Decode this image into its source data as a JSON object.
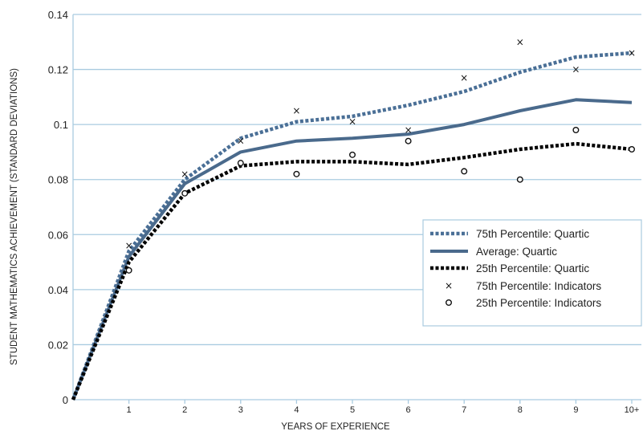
{
  "chart_data": {
    "type": "line",
    "title": "",
    "xlabel": "YEARS OF EXPERIENCE",
    "ylabel": "STUDENT MATHEMATICS ACHIEVEMENT (STANDARD DEVIATIONS)",
    "x_categories": [
      "1",
      "2",
      "3",
      "4",
      "5",
      "6",
      "7",
      "8",
      "9",
      "10+"
    ],
    "ylim": [
      0,
      0.14
    ],
    "y_ticks": [
      "0",
      "0.02",
      "0.04",
      "0.06",
      "0.08",
      "0.1",
      "0.12",
      "0.14"
    ],
    "grid": "horizontal",
    "legend_position": "right",
    "colors": {
      "percentile75_quartic": "#4a6f96",
      "average_quartic": "#4a6a8c",
      "percentile25_quartic": "#000000",
      "grid": "#a9cbe0",
      "markers": "#111111"
    },
    "series": [
      {
        "name": "75th Percentile: Quartic",
        "kind": "line",
        "style": "dotted",
        "x": [
          0,
          1,
          2,
          3,
          4,
          5,
          6,
          7,
          8,
          9,
          10
        ],
        "values": [
          0,
          0.054,
          0.08,
          0.095,
          0.101,
          0.103,
          0.107,
          0.112,
          0.119,
          0.1245,
          0.126
        ]
      },
      {
        "name": "Average: Quartic",
        "kind": "line",
        "style": "solid",
        "x": [
          0,
          1,
          2,
          3,
          4,
          5,
          6,
          7,
          8,
          9,
          10
        ],
        "values": [
          0,
          0.052,
          0.0785,
          0.09,
          0.094,
          0.095,
          0.0965,
          0.1,
          0.105,
          0.109,
          0.108
        ]
      },
      {
        "name": "25th Percentile: Quartic",
        "kind": "line",
        "style": "dotted-bold",
        "x": [
          0,
          1,
          2,
          3,
          4,
          5,
          6,
          7,
          8,
          9,
          10
        ],
        "values": [
          0,
          0.05,
          0.075,
          0.085,
          0.0865,
          0.0865,
          0.0855,
          0.088,
          0.091,
          0.093,
          0.091
        ]
      },
      {
        "name": "75th Percentile: Indicators",
        "kind": "marker",
        "marker": "x",
        "x": [
          1,
          2,
          3,
          4,
          5,
          6,
          7,
          8,
          9,
          10
        ],
        "values": [
          0.056,
          0.082,
          0.094,
          0.105,
          0.101,
          0.098,
          0.117,
          0.13,
          0.12,
          0.126
        ]
      },
      {
        "name": "25th Percentile: Indicators",
        "kind": "marker",
        "marker": "o",
        "x": [
          1,
          2,
          3,
          4,
          5,
          6,
          7,
          8,
          9,
          10
        ],
        "values": [
          0.047,
          0.075,
          0.086,
          0.082,
          0.089,
          0.094,
          0.083,
          0.08,
          0.098,
          0.091
        ]
      }
    ]
  }
}
